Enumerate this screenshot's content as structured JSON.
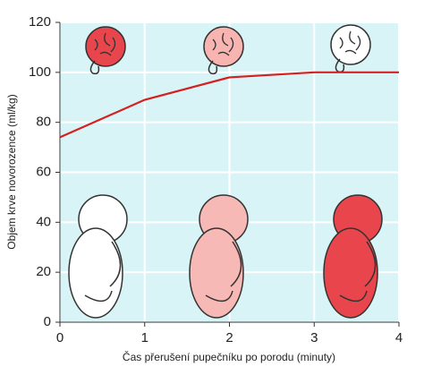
{
  "chart_data": {
    "type": "line",
    "x_label": "Čas přerušení pupečníku po porodu (minuty)",
    "y_label": "Objem krve novorozence (ml/kg)",
    "x": [
      0,
      1,
      2,
      3,
      4
    ],
    "series": [
      {
        "color": "#d42020",
        "values": [
          74,
          89,
          98,
          100,
          100
        ]
      }
    ],
    "xlim": [
      0,
      4
    ],
    "xticks": [
      0,
      1,
      2,
      3,
      4
    ],
    "ylim": [
      0,
      120
    ],
    "yticks": [
      0,
      20,
      40,
      60,
      80,
      100,
      120
    ],
    "grid": true,
    "background": "#d9f4f6"
  }
}
